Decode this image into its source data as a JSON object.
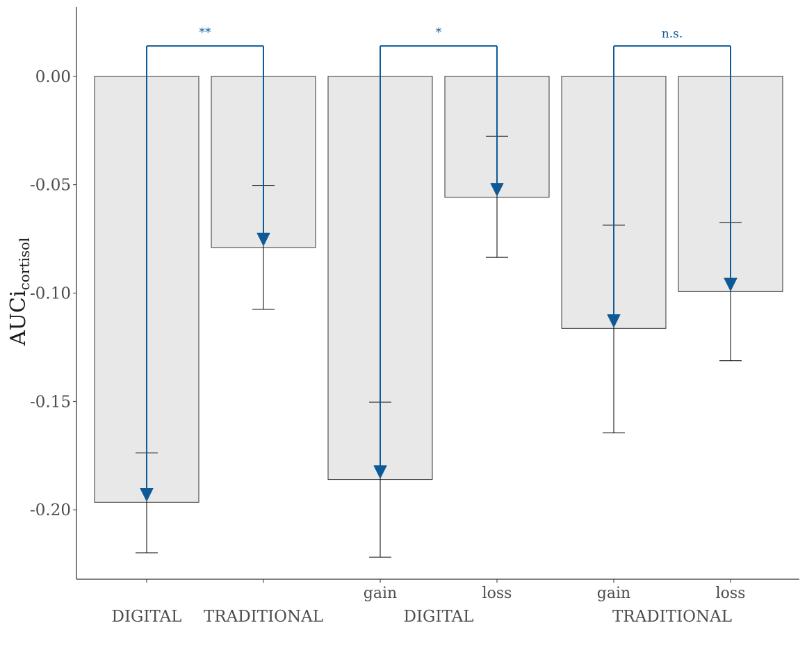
{
  "chart_data": {
    "type": "bar",
    "ylabel": "AUCi",
    "ylabel_subscript": "cortisol",
    "ylim": [
      -0.232,
      0.032
    ],
    "yticks": [
      0.0,
      -0.05,
      -0.1,
      -0.15,
      -0.2
    ],
    "ytick_labels": [
      "0.00",
      "-0.05",
      "-0.10",
      "-0.15",
      "-0.20"
    ],
    "grid": false,
    "colors": {
      "bar_fill": "#e8e8e8",
      "bar_stroke": "#333333",
      "annotation": "#0f5a96",
      "errorbar": "#000000"
    },
    "bars": [
      {
        "category": "",
        "group": "DIGITAL",
        "value": -0.1965,
        "err_low": -0.2198,
        "err_high": -0.1737,
        "marker": -0.194
      },
      {
        "category": "",
        "group": "TRADITIONAL",
        "value": -0.079,
        "err_low": -0.1075,
        "err_high": -0.0503,
        "marker": -0.0762
      },
      {
        "category": "gain",
        "group": "DIGITAL",
        "value": -0.186,
        "err_low": -0.2218,
        "err_high": -0.1503,
        "marker": -0.1835
      },
      {
        "category": "loss",
        "group": "DIGITAL",
        "value": -0.0558,
        "err_low": -0.0835,
        "err_high": -0.0277,
        "marker": -0.0532
      },
      {
        "category": "gain",
        "group": "TRADITIONAL",
        "value": -0.1163,
        "err_low": -0.1645,
        "err_high": -0.0687,
        "marker": -0.1138
      },
      {
        "category": "loss",
        "group": "TRADITIONAL",
        "value": -0.0993,
        "err_low": -0.1312,
        "err_high": -0.0675,
        "marker": -0.097
      }
    ],
    "group_labels": [
      {
        "text": "DIGITAL",
        "bars": [
          0
        ]
      },
      {
        "text": "TRADITIONAL",
        "bars": [
          1
        ]
      },
      {
        "text": "DIGITAL",
        "bars": [
          2,
          3
        ]
      },
      {
        "text": "TRADITIONAL",
        "bars": [
          4,
          5
        ]
      }
    ],
    "comparisons": [
      {
        "bars": [
          0,
          1
        ],
        "label": "**",
        "bracket_y": 0.014
      },
      {
        "bars": [
          2,
          3
        ],
        "label": "*",
        "bracket_y": 0.014
      },
      {
        "bars": [
          4,
          5
        ],
        "label": "n.s.",
        "bracket_y": 0.014
      }
    ]
  }
}
